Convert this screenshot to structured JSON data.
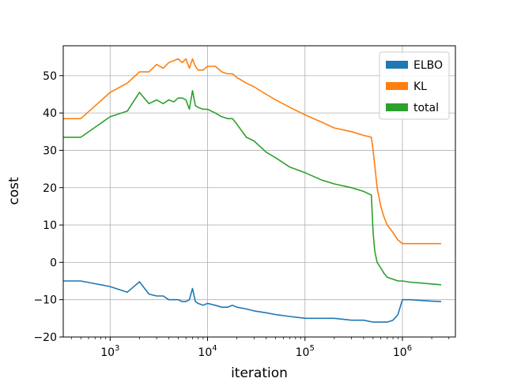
{
  "chart_data": {
    "type": "line",
    "title": "",
    "xlabel": "iteration",
    "ylabel": "cost",
    "xscale": "log",
    "xlim": [
      330,
      3500000
    ],
    "ylim": [
      -20,
      58
    ],
    "yticks": [
      -20,
      -10,
      0,
      10,
      20,
      30,
      40,
      50
    ],
    "xticks": [
      {
        "value": 1000,
        "base": "10",
        "exp": "3"
      },
      {
        "value": 10000,
        "base": "10",
        "exp": "4"
      },
      {
        "value": 100000,
        "base": "10",
        "exp": "5"
      },
      {
        "value": 1000000,
        "base": "10",
        "exp": "6"
      }
    ],
    "grid": true,
    "legend_position": "top-right",
    "series": [
      {
        "name": "ELBO",
        "color": "#1f77b4",
        "x": [
          330,
          500,
          1000,
          1500,
          2000,
          2500,
          3000,
          3500,
          4000,
          4500,
          5000,
          5500,
          6000,
          6500,
          7000,
          7500,
          8000,
          9000,
          10000,
          12000,
          14000,
          16000,
          18000,
          20000,
          25000,
          30000,
          40000,
          50000,
          70000,
          100000,
          150000,
          200000,
          300000,
          400000,
          500000,
          600000,
          700000,
          800000,
          900000,
          1000000,
          1200000,
          1500000,
          2000000,
          2500000
        ],
        "y": [
          -5,
          -5,
          -6.5,
          -8,
          -5.2,
          -8.5,
          -9,
          -9,
          -10,
          -10,
          -10,
          -10.5,
          -10.5,
          -10,
          -7,
          -10.5,
          -11,
          -11.5,
          -11,
          -11.5,
          -12,
          -12,
          -11.5,
          -12,
          -12.5,
          -13,
          -13.5,
          -14,
          -14.5,
          -15,
          -15,
          -15,
          -15.5,
          -15.5,
          -16,
          -16,
          -16,
          -15.5,
          -14,
          -10,
          -10,
          -10.2,
          -10.4,
          -10.5
        ]
      },
      {
        "name": "KL",
        "color": "#ff7f0e",
        "x": [
          330,
          500,
          1000,
          1500,
          2000,
          2500,
          3000,
          3500,
          4000,
          4500,
          5000,
          5500,
          6000,
          6500,
          7000,
          7500,
          8000,
          9000,
          10000,
          12000,
          14000,
          16000,
          18000,
          20000,
          25000,
          30000,
          40000,
          50000,
          70000,
          100000,
          150000,
          200000,
          300000,
          400000,
          480000,
          500000,
          520000,
          550000,
          600000,
          650000,
          700000,
          800000,
          900000,
          1000000,
          1200000,
          1500000,
          2000000,
          2500000
        ],
        "y": [
          38.5,
          38.5,
          45.5,
          48,
          51,
          51,
          53,
          52,
          53.5,
          54,
          54.5,
          53.5,
          54.5,
          52,
          54.5,
          52.5,
          51.5,
          51.5,
          52.5,
          52.5,
          51,
          50.5,
          50.5,
          49.5,
          48,
          47,
          45,
          43.5,
          41.5,
          39.5,
          37.5,
          36,
          35,
          34,
          33.5,
          30,
          26,
          20,
          15,
          12,
          10,
          8,
          6,
          5,
          5,
          5,
          5,
          5
        ]
      },
      {
        "name": "total",
        "color": "#2ca02c",
        "x": [
          330,
          500,
          1000,
          1500,
          2000,
          2500,
          3000,
          3500,
          4000,
          4500,
          5000,
          5500,
          6000,
          6500,
          7000,
          7500,
          8000,
          9000,
          10000,
          12000,
          14000,
          16000,
          18000,
          20000,
          25000,
          30000,
          40000,
          50000,
          70000,
          100000,
          150000,
          200000,
          300000,
          400000,
          480000,
          500000,
          520000,
          550000,
          600000,
          650000,
          700000,
          800000,
          900000,
          1000000,
          1200000,
          1500000,
          2000000,
          2500000
        ],
        "y": [
          33.5,
          33.5,
          39,
          40.5,
          45.5,
          42.5,
          43.5,
          42.5,
          43.5,
          43,
          44,
          44,
          43.5,
          41,
          46,
          42,
          41.5,
          41,
          41,
          40,
          39,
          38.5,
          38.5,
          37,
          33.5,
          32.5,
          29.5,
          28,
          25.5,
          24,
          22,
          21,
          20,
          19,
          18,
          8,
          3,
          0,
          -1.5,
          -3,
          -4,
          -4.5,
          -5,
          -5,
          -5.3,
          -5.5,
          -5.8,
          -6
        ]
      }
    ]
  }
}
